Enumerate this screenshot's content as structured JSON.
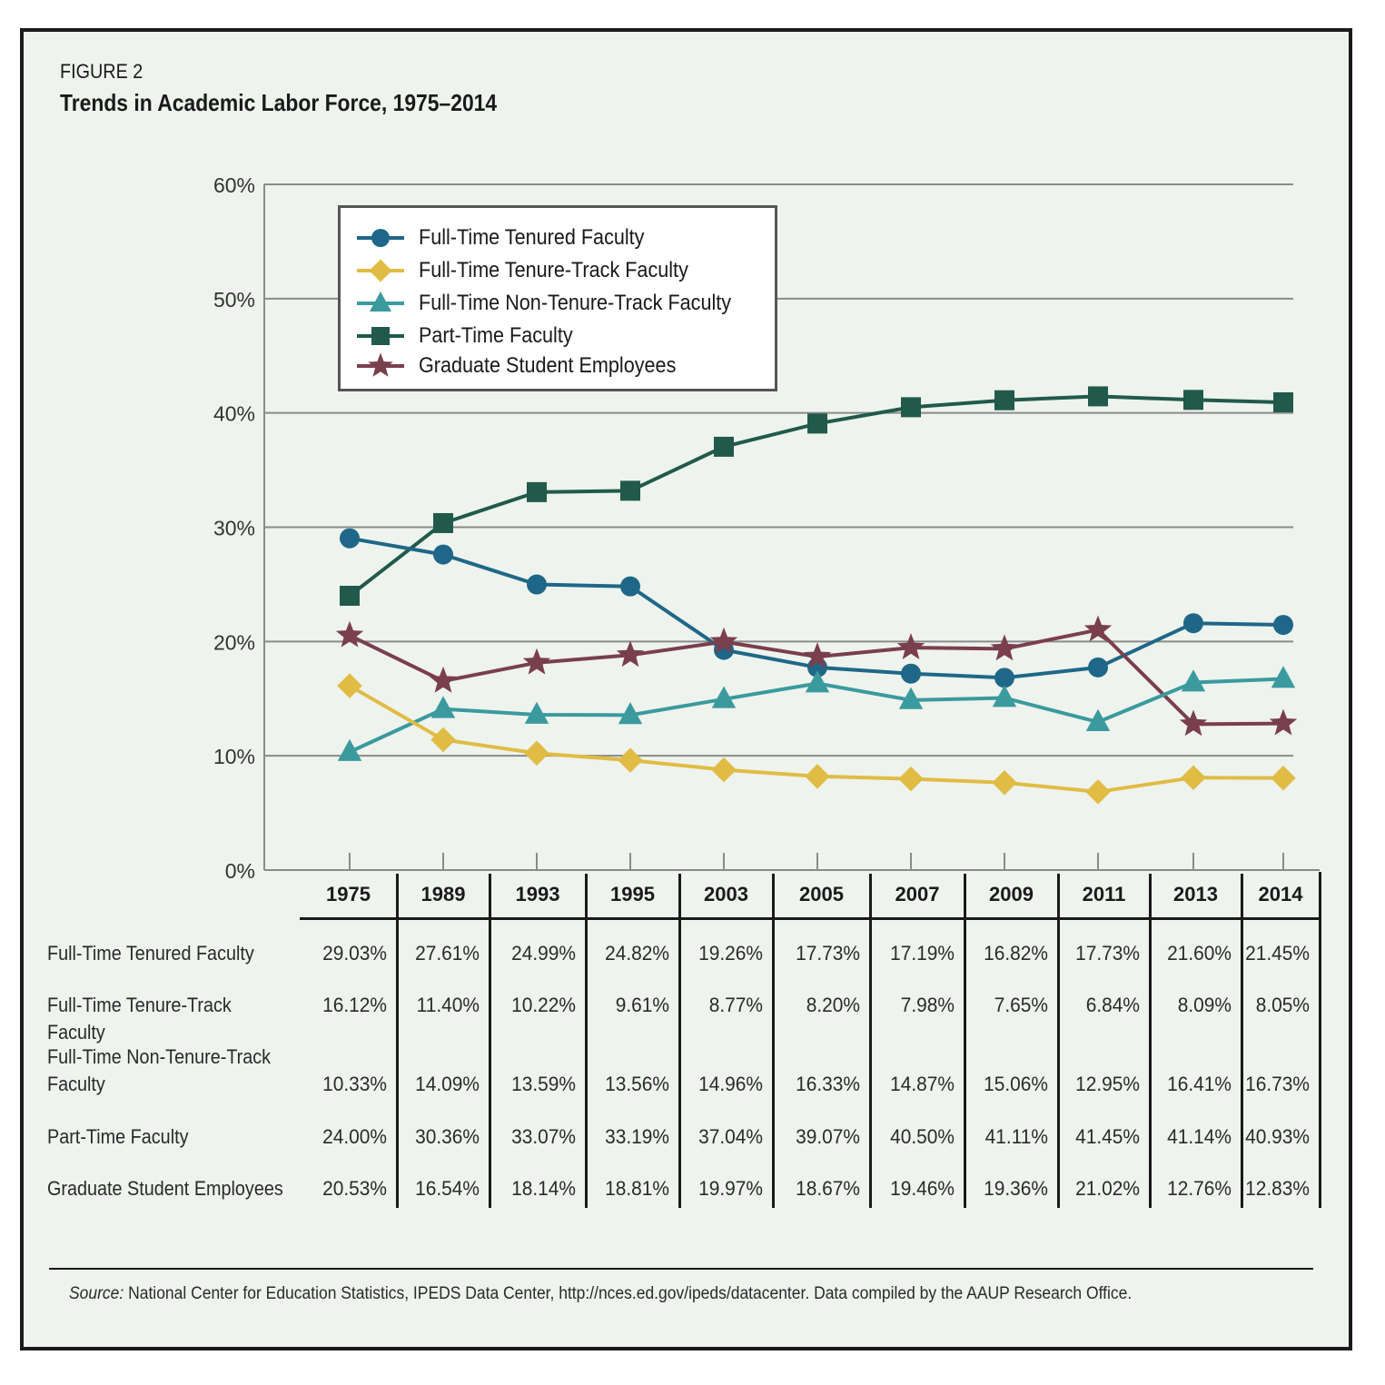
{
  "figure_label": "FIGURE 2",
  "title": "Trends in Academic Labor Force, 1975–2014",
  "source_prefix": "Source:",
  "source_text": "National Center for Education Statistics, IPEDS Data Center, http://nces.ed.gov/ipeds/datacenter. Data compiled by the AAUP Research Office.",
  "chart_data": {
    "type": "line",
    "title": "Trends in Academic Labor Force, 1975–2014",
    "xlabel": "",
    "ylabel": "",
    "ylim": [
      0,
      60
    ],
    "y_ticks": [
      "0%",
      "10%",
      "20%",
      "30%",
      "40%",
      "50%",
      "60%"
    ],
    "y_tick_values": [
      0,
      10,
      20,
      30,
      40,
      50,
      60
    ],
    "grid": true,
    "legend_placement": "top-left",
    "categories": [
      "1975",
      "1989",
      "1993",
      "1995",
      "2003",
      "2005",
      "2007",
      "2009",
      "2011",
      "2013",
      "2014"
    ],
    "series": [
      {
        "name": "Full-Time Tenured Faculty",
        "table_label": [
          "Full-Time Tenured Faculty"
        ],
        "marker": "circle",
        "color": "#1f6788",
        "values": [
          29.03,
          27.61,
          24.99,
          24.82,
          19.26,
          17.73,
          17.19,
          16.82,
          17.73,
          21.6,
          21.45
        ],
        "labels": [
          "29.03%",
          "27.61%",
          "24.99%",
          "24.82%",
          "19.26%",
          "17.73%",
          "17.19%",
          "16.82%",
          "17.73%",
          "21.60%",
          "21.45%"
        ]
      },
      {
        "name": "Full-Time Tenure-Track Faculty",
        "table_label": [
          "Full-Time Tenure-Track Faculty"
        ],
        "marker": "diamond",
        "color": "#e0bc44",
        "values": [
          16.12,
          11.4,
          10.22,
          9.61,
          8.77,
          8.2,
          7.98,
          7.65,
          6.84,
          8.09,
          8.05
        ],
        "labels": [
          "16.12%",
          "11.40%",
          "10.22%",
          "9.61%",
          "8.77%",
          "8.20%",
          "7.98%",
          "7.65%",
          "6.84%",
          "8.09%",
          "8.05%"
        ]
      },
      {
        "name": "Full-Time Non-Tenure-Track Faculty",
        "table_label": [
          "Full-Time Non-Tenure-Track",
          "Faculty"
        ],
        "marker": "triangle",
        "color": "#3a9a9e",
        "values": [
          10.33,
          14.09,
          13.59,
          13.56,
          14.96,
          16.33,
          14.87,
          15.06,
          12.95,
          16.41,
          16.73
        ],
        "labels": [
          "10.33%",
          "14.09%",
          "13.59%",
          "13.56%",
          "14.96%",
          "16.33%",
          "14.87%",
          "15.06%",
          "12.95%",
          "16.41%",
          "16.73%"
        ]
      },
      {
        "name": "Part-Time Faculty",
        "table_label": [
          "Part-Time Faculty"
        ],
        "marker": "square",
        "color": "#215a4a",
        "values": [
          24.0,
          30.36,
          33.07,
          33.19,
          37.04,
          39.07,
          40.5,
          41.11,
          41.45,
          41.14,
          40.93
        ],
        "labels": [
          "24.00%",
          "30.36%",
          "33.07%",
          "33.19%",
          "37.04%",
          "39.07%",
          "40.50%",
          "41.11%",
          "41.45%",
          "41.14%",
          "40.93%"
        ]
      },
      {
        "name": "Graduate Student Employees",
        "table_label": [
          "Graduate Student Employees"
        ],
        "marker": "star",
        "color": "#7a3f4c",
        "values": [
          20.53,
          16.54,
          18.14,
          18.81,
          19.97,
          18.67,
          19.46,
          19.36,
          21.02,
          12.76,
          12.83
        ],
        "labels": [
          "20.53%",
          "16.54%",
          "18.14%",
          "18.81%",
          "19.97%",
          "18.67%",
          "19.46%",
          "19.36%",
          "21.02%",
          "12.76%",
          "12.83%"
        ]
      }
    ]
  }
}
